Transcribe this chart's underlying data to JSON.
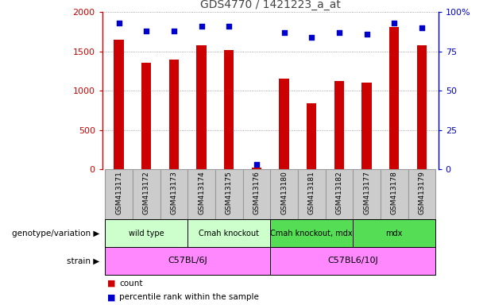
{
  "title": "GDS4770 / 1421223_a_at",
  "samples": [
    "GSM413171",
    "GSM413172",
    "GSM413173",
    "GSM413174",
    "GSM413175",
    "GSM413176",
    "GSM413180",
    "GSM413181",
    "GSM413182",
    "GSM413177",
    "GSM413178",
    "GSM413179"
  ],
  "counts": [
    1650,
    1360,
    1400,
    1580,
    1520,
    25,
    1150,
    840,
    1120,
    1100,
    1810,
    1580
  ],
  "percentiles": [
    93,
    88,
    88,
    91,
    91,
    3,
    87,
    84,
    87,
    86,
    93,
    90
  ],
  "bar_color": "#cc0000",
  "dot_color": "#0000cc",
  "ylim_left": [
    0,
    2000
  ],
  "ylim_right": [
    0,
    100
  ],
  "yticks_left": [
    0,
    500,
    1000,
    1500,
    2000
  ],
  "ytick_labels_left": [
    "0",
    "500",
    "1000",
    "1500",
    "2000"
  ],
  "yticks_right": [
    0,
    25,
    50,
    75,
    100
  ],
  "ytick_labels_right": [
    "0",
    "25",
    "50",
    "75",
    "100%"
  ],
  "genotype_groups": [
    {
      "label": "wild type",
      "start": 0,
      "end": 2,
      "color": "#ccffcc"
    },
    {
      "label": "Cmah knockout",
      "start": 3,
      "end": 5,
      "color": "#ccffcc"
    },
    {
      "label": "Cmah knockout, mdx",
      "start": 6,
      "end": 8,
      "color": "#55dd55"
    },
    {
      "label": "mdx",
      "start": 9,
      "end": 11,
      "color": "#55dd55"
    }
  ],
  "strain_groups": [
    {
      "label": "C57BL/6J",
      "start": 0,
      "end": 5,
      "color": "#ff88ff"
    },
    {
      "label": "C57BL6/10J",
      "start": 6,
      "end": 11,
      "color": "#ff88ff"
    }
  ],
  "label_genotype": "genotype/variation",
  "label_strain": "strain",
  "legend_count": "count",
  "legend_percentile": "percentile rank within the sample",
  "title_color": "#444444",
  "left_axis_color": "#cc0000",
  "right_axis_color": "#0000cc",
  "grid_color": "#888888",
  "tick_label_area_color": "#cccccc",
  "tick_border_color": "#999999",
  "bar_width": 0.35
}
